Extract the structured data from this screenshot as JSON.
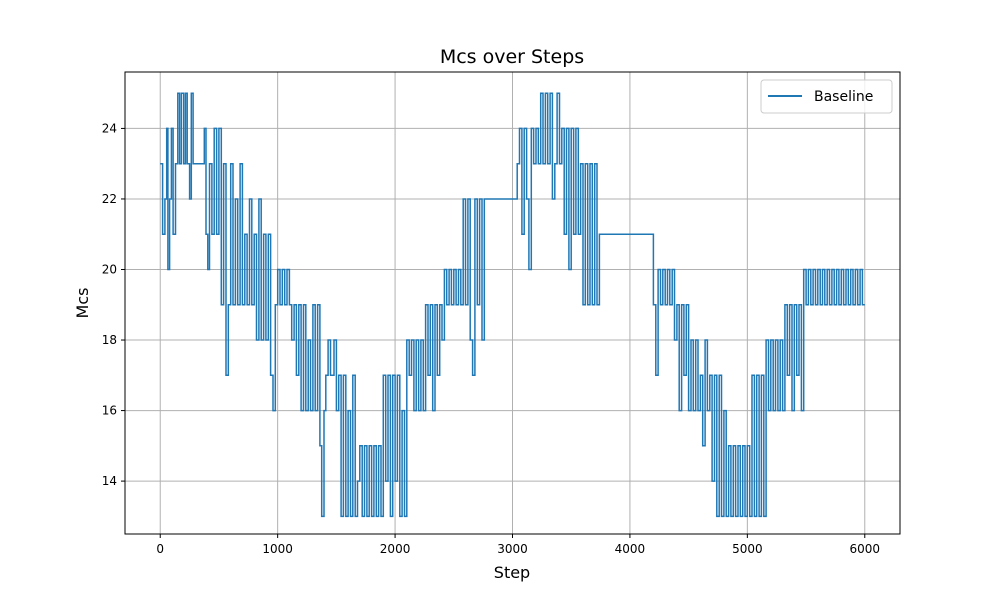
{
  "chart_data": {
    "type": "line",
    "title": "Mcs over Steps",
    "xlabel": "Step",
    "ylabel": "Mcs",
    "xlim": [
      -300,
      6300
    ],
    "ylim": [
      12.5,
      25.6
    ],
    "xticks": [
      0,
      1000,
      2000,
      3000,
      4000,
      5000,
      6000
    ],
    "yticks": [
      14,
      16,
      18,
      20,
      22,
      24
    ],
    "grid": true,
    "legend_position": "top-right",
    "series": [
      {
        "name": "Baseline",
        "color": "#1f77b4",
        "step": true,
        "points": [
          [
            0,
            23
          ],
          [
            20,
            21
          ],
          [
            40,
            22
          ],
          [
            55,
            24
          ],
          [
            65,
            20
          ],
          [
            80,
            22
          ],
          [
            95,
            24
          ],
          [
            110,
            21
          ],
          [
            130,
            23
          ],
          [
            150,
            25
          ],
          [
            165,
            23
          ],
          [
            180,
            25
          ],
          [
            200,
            23
          ],
          [
            215,
            25
          ],
          [
            230,
            23
          ],
          [
            250,
            22
          ],
          [
            265,
            25
          ],
          [
            280,
            23
          ],
          [
            300,
            23
          ],
          [
            340,
            23
          ],
          [
            375,
            24
          ],
          [
            390,
            21
          ],
          [
            405,
            20
          ],
          [
            420,
            23
          ],
          [
            440,
            21
          ],
          [
            460,
            24
          ],
          [
            480,
            21
          ],
          [
            500,
            24
          ],
          [
            520,
            19
          ],
          [
            540,
            23
          ],
          [
            560,
            17
          ],
          [
            580,
            19
          ],
          [
            600,
            23
          ],
          [
            620,
            19
          ],
          [
            640,
            22
          ],
          [
            660,
            19
          ],
          [
            680,
            23
          ],
          [
            700,
            19
          ],
          [
            720,
            21
          ],
          [
            740,
            19
          ],
          [
            760,
            22
          ],
          [
            780,
            19
          ],
          [
            800,
            21
          ],
          [
            820,
            18
          ],
          [
            840,
            22
          ],
          [
            860,
            18
          ],
          [
            880,
            21
          ],
          [
            900,
            18
          ],
          [
            920,
            21
          ],
          [
            940,
            17
          ],
          [
            960,
            16
          ],
          [
            980,
            19
          ],
          [
            1000,
            20
          ],
          [
            1020,
            19
          ],
          [
            1040,
            20
          ],
          [
            1060,
            19
          ],
          [
            1080,
            20
          ],
          [
            1100,
            19
          ],
          [
            1120,
            18
          ],
          [
            1140,
            19
          ],
          [
            1160,
            17
          ],
          [
            1180,
            19
          ],
          [
            1200,
            16
          ],
          [
            1220,
            19
          ],
          [
            1240,
            16
          ],
          [
            1260,
            18
          ],
          [
            1280,
            16
          ],
          [
            1300,
            19
          ],
          [
            1320,
            16
          ],
          [
            1340,
            19
          ],
          [
            1360,
            15
          ],
          [
            1375,
            13
          ],
          [
            1395,
            16
          ],
          [
            1410,
            17
          ],
          [
            1430,
            18
          ],
          [
            1450,
            17
          ],
          [
            1480,
            18
          ],
          [
            1500,
            16
          ],
          [
            1520,
            17
          ],
          [
            1540,
            13
          ],
          [
            1560,
            17
          ],
          [
            1580,
            13
          ],
          [
            1600,
            16
          ],
          [
            1620,
            13
          ],
          [
            1640,
            17
          ],
          [
            1660,
            13
          ],
          [
            1680,
            14
          ],
          [
            1700,
            15
          ],
          [
            1720,
            13
          ],
          [
            1740,
            15
          ],
          [
            1760,
            13
          ],
          [
            1780,
            15
          ],
          [
            1800,
            13
          ],
          [
            1820,
            15
          ],
          [
            1840,
            13
          ],
          [
            1860,
            15
          ],
          [
            1880,
            13
          ],
          [
            1900,
            17
          ],
          [
            1920,
            14
          ],
          [
            1940,
            17
          ],
          [
            1960,
            13
          ],
          [
            1980,
            17
          ],
          [
            2000,
            14
          ],
          [
            2020,
            17
          ],
          [
            2040,
            13
          ],
          [
            2060,
            16
          ],
          [
            2080,
            13
          ],
          [
            2100,
            18
          ],
          [
            2120,
            17
          ],
          [
            2140,
            18
          ],
          [
            2160,
            16
          ],
          [
            2180,
            18
          ],
          [
            2200,
            16
          ],
          [
            2220,
            18
          ],
          [
            2240,
            16
          ],
          [
            2260,
            19
          ],
          [
            2280,
            17
          ],
          [
            2300,
            19
          ],
          [
            2320,
            16
          ],
          [
            2340,
            19
          ],
          [
            2360,
            17
          ],
          [
            2380,
            19
          ],
          [
            2400,
            18
          ],
          [
            2420,
            20
          ],
          [
            2440,
            19
          ],
          [
            2460,
            20
          ],
          [
            2480,
            19
          ],
          [
            2500,
            20
          ],
          [
            2520,
            19
          ],
          [
            2540,
            20
          ],
          [
            2560,
            19
          ],
          [
            2580,
            22
          ],
          [
            2600,
            19
          ],
          [
            2620,
            22
          ],
          [
            2640,
            18
          ],
          [
            2660,
            17
          ],
          [
            2680,
            22
          ],
          [
            2700,
            19
          ],
          [
            2720,
            22
          ],
          [
            2740,
            18
          ],
          [
            2760,
            22
          ],
          [
            2800,
            22
          ],
          [
            2840,
            22
          ],
          [
            2880,
            22
          ],
          [
            2920,
            22
          ],
          [
            2960,
            22
          ],
          [
            3000,
            22
          ],
          [
            3040,
            23
          ],
          [
            3060,
            24
          ],
          [
            3080,
            21
          ],
          [
            3100,
            24
          ],
          [
            3120,
            22
          ],
          [
            3140,
            20
          ],
          [
            3160,
            24
          ],
          [
            3180,
            23
          ],
          [
            3200,
            24
          ],
          [
            3220,
            23
          ],
          [
            3240,
            25
          ],
          [
            3260,
            23
          ],
          [
            3280,
            25
          ],
          [
            3300,
            23
          ],
          [
            3320,
            25
          ],
          [
            3340,
            22
          ],
          [
            3360,
            23
          ],
          [
            3380,
            25
          ],
          [
            3400,
            23
          ],
          [
            3420,
            24
          ],
          [
            3440,
            21
          ],
          [
            3460,
            24
          ],
          [
            3480,
            20
          ],
          [
            3500,
            24
          ],
          [
            3520,
            21
          ],
          [
            3540,
            24
          ],
          [
            3560,
            21
          ],
          [
            3580,
            23
          ],
          [
            3600,
            19
          ],
          [
            3620,
            23
          ],
          [
            3640,
            19
          ],
          [
            3660,
            23
          ],
          [
            3680,
            19
          ],
          [
            3700,
            23
          ],
          [
            3720,
            19
          ],
          [
            3740,
            21
          ],
          [
            3760,
            21
          ],
          [
            3800,
            21
          ],
          [
            3840,
            21
          ],
          [
            3880,
            21
          ],
          [
            3920,
            21
          ],
          [
            3960,
            21
          ],
          [
            4000,
            21
          ],
          [
            4040,
            21
          ],
          [
            4080,
            21
          ],
          [
            4120,
            21
          ],
          [
            4160,
            21
          ],
          [
            4200,
            19
          ],
          [
            4220,
            17
          ],
          [
            4240,
            20
          ],
          [
            4260,
            19
          ],
          [
            4280,
            20
          ],
          [
            4300,
            19
          ],
          [
            4320,
            20
          ],
          [
            4340,
            19
          ],
          [
            4360,
            20
          ],
          [
            4380,
            18
          ],
          [
            4400,
            19
          ],
          [
            4420,
            16
          ],
          [
            4440,
            19
          ],
          [
            4460,
            17
          ],
          [
            4480,
            19
          ],
          [
            4500,
            16
          ],
          [
            4520,
            18
          ],
          [
            4540,
            16
          ],
          [
            4560,
            18
          ],
          [
            4580,
            16
          ],
          [
            4600,
            17
          ],
          [
            4620,
            15
          ],
          [
            4640,
            18
          ],
          [
            4660,
            16
          ],
          [
            4680,
            17
          ],
          [
            4700,
            14
          ],
          [
            4720,
            17
          ],
          [
            4740,
            13
          ],
          [
            4760,
            17
          ],
          [
            4780,
            13
          ],
          [
            4800,
            16
          ],
          [
            4820,
            13
          ],
          [
            4840,
            15
          ],
          [
            4860,
            13
          ],
          [
            4880,
            15
          ],
          [
            4900,
            13
          ],
          [
            4920,
            15
          ],
          [
            4940,
            13
          ],
          [
            4960,
            15
          ],
          [
            4980,
            13
          ],
          [
            5000,
            15
          ],
          [
            5020,
            13
          ],
          [
            5040,
            17
          ],
          [
            5060,
            13
          ],
          [
            5080,
            17
          ],
          [
            5100,
            13
          ],
          [
            5120,
            17
          ],
          [
            5140,
            13
          ],
          [
            5160,
            18
          ],
          [
            5180,
            16
          ],
          [
            5200,
            18
          ],
          [
            5220,
            16
          ],
          [
            5240,
            18
          ],
          [
            5260,
            16
          ],
          [
            5280,
            18
          ],
          [
            5300,
            16
          ],
          [
            5320,
            19
          ],
          [
            5340,
            17
          ],
          [
            5360,
            19
          ],
          [
            5380,
            16
          ],
          [
            5400,
            19
          ],
          [
            5420,
            17
          ],
          [
            5440,
            19
          ],
          [
            5460,
            16
          ],
          [
            5480,
            20
          ],
          [
            5500,
            19
          ],
          [
            5520,
            20
          ],
          [
            5540,
            19
          ],
          [
            5560,
            20
          ],
          [
            5580,
            19
          ],
          [
            5600,
            20
          ],
          [
            5620,
            19
          ],
          [
            5640,
            20
          ],
          [
            5660,
            19
          ],
          [
            5680,
            20
          ],
          [
            5700,
            19
          ],
          [
            5720,
            20
          ],
          [
            5740,
            19
          ],
          [
            5760,
            20
          ],
          [
            5780,
            19
          ],
          [
            5800,
            20
          ],
          [
            5820,
            19
          ],
          [
            5840,
            20
          ],
          [
            5860,
            19
          ],
          [
            5880,
            20
          ],
          [
            5900,
            19
          ],
          [
            5920,
            20
          ],
          [
            5940,
            19
          ],
          [
            5960,
            20
          ],
          [
            5980,
            19
          ],
          [
            6000,
            19
          ]
        ]
      }
    ]
  }
}
